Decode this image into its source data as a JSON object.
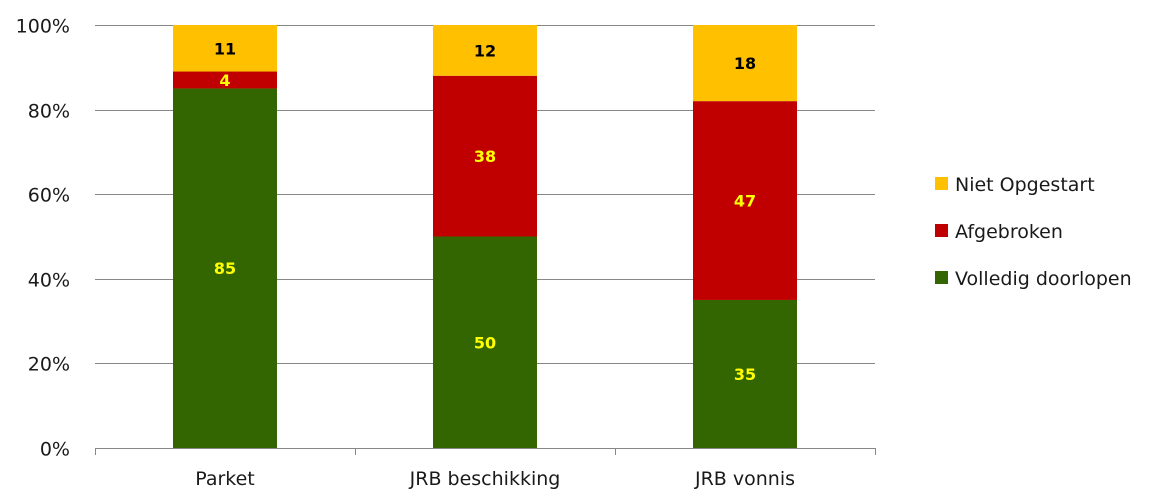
{
  "chart_data": {
    "type": "bar",
    "stacked": true,
    "percent_stacked": true,
    "categories": [
      "Parket",
      "JRB beschikking",
      "JRB vonnis"
    ],
    "series": [
      {
        "name": "Volledig doorlopen",
        "values": [
          85,
          50,
          35
        ],
        "color": "#336600",
        "label_color": "#ffff00"
      },
      {
        "name": "Afgebroken",
        "values": [
          4,
          38,
          47
        ],
        "color": "#c00000",
        "label_color": "#ffff00"
      },
      {
        "name": "Niet Opgestart",
        "values": [
          11,
          12,
          18
        ],
        "color": "#ffc000",
        "label_color": "#000000"
      }
    ],
    "ylim": [
      0,
      100
    ],
    "yticks": [
      "0%",
      "20%",
      "40%",
      "60%",
      "80%",
      "100%"
    ],
    "title": "",
    "xlabel": "",
    "ylabel": "",
    "grid": true,
    "gridline_color": "#878787",
    "legend_position": "right",
    "legend_order": [
      "Niet Opgestart",
      "Afgebroken",
      "Volledig doorlopen"
    ]
  }
}
